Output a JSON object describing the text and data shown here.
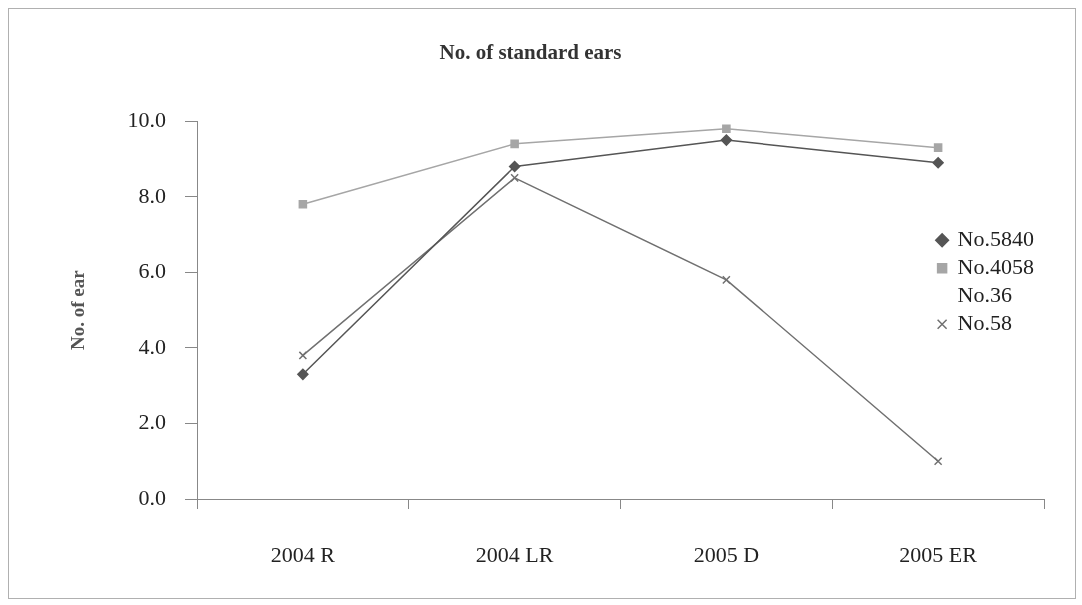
{
  "chart_data": {
    "type": "line",
    "title": "No. of standard ears",
    "ylabel": "No. of ear",
    "categories": [
      "2004 R",
      "2004 LR",
      "2005 D",
      "2005 ER"
    ],
    "series": [
      {
        "name": "No.5840",
        "color": "#555555",
        "marker": "diamond",
        "values": [
          3.3,
          8.8,
          9.5,
          8.9
        ]
      },
      {
        "name": "No.4058",
        "color": "#a6a6a6",
        "marker": "square",
        "values": [
          7.8,
          9.4,
          9.8,
          9.3
        ]
      },
      {
        "name": "No.36",
        "marker": "none",
        "values": [
          null,
          null,
          null,
          null
        ]
      },
      {
        "name": "No.58",
        "color": "#707070",
        "marker": "cross",
        "values": [
          3.8,
          8.5,
          5.8,
          1.0
        ]
      }
    ],
    "ylim": [
      0,
      10
    ],
    "yticks": [
      {
        "value": 0,
        "label": "0.0"
      },
      {
        "value": 2,
        "label": "2.0"
      },
      {
        "value": 4,
        "label": "4.0"
      },
      {
        "value": 6,
        "label": "6.0"
      },
      {
        "value": 8,
        "label": "8.0"
      },
      {
        "value": 10,
        "label": "10.0"
      }
    ],
    "legend": "right"
  }
}
